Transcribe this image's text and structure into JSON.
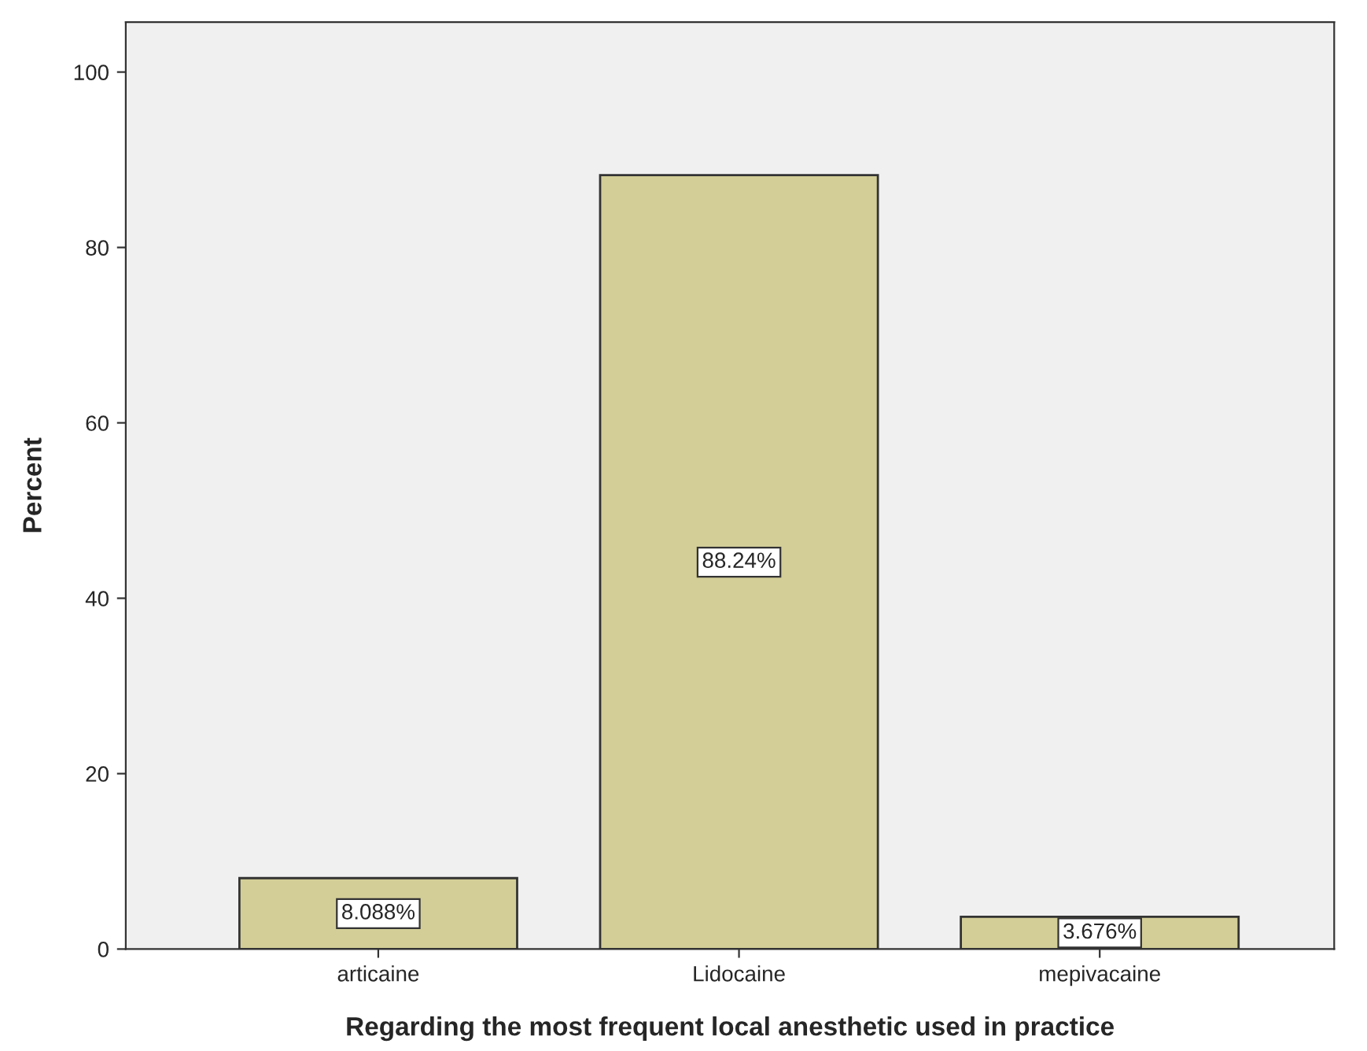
{
  "chart_data": {
    "type": "bar",
    "xlabel": "Regarding the most frequent local anesthetic used in practice",
    "ylabel": "Percent",
    "categories": [
      "articaine",
      "Lidocaine",
      "mepivacaine"
    ],
    "values": [
      8.088,
      88.24,
      3.676
    ],
    "value_labels": [
      "8.088%",
      "88.24%",
      "3.676%"
    ],
    "color": "#d3ce97",
    "ylim": [
      0,
      105.7
    ],
    "yticks": [
      0,
      20,
      40,
      60,
      80,
      100
    ],
    "grid": false
  }
}
